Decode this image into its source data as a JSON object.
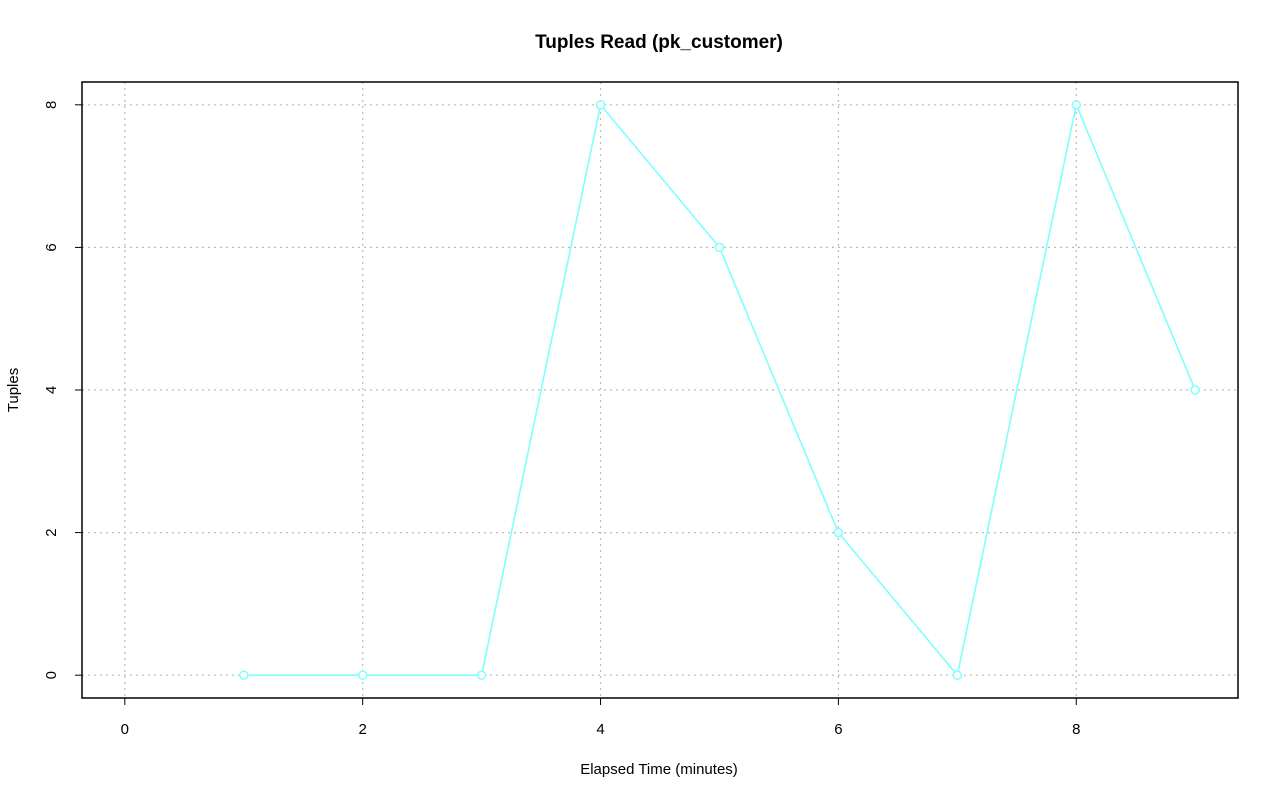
{
  "chart_data": {
    "type": "line",
    "title": "Tuples Read (pk_customer)",
    "x_label": "Elapsed Time (minutes)",
    "y_label": "Tuples",
    "x": [
      1,
      2,
      3,
      4,
      5,
      6,
      7,
      8,
      9
    ],
    "values": [
      0,
      0,
      0,
      8,
      6,
      2,
      0,
      8,
      4
    ],
    "color": "#7fffff",
    "xlim": [
      -0.36,
      9.36
    ],
    "xticks": [
      0,
      2,
      4,
      6,
      8
    ],
    "ylim": [
      -0.32,
      8.32
    ],
    "yticks": [
      0,
      2,
      4,
      6,
      8
    ],
    "grid": true
  }
}
